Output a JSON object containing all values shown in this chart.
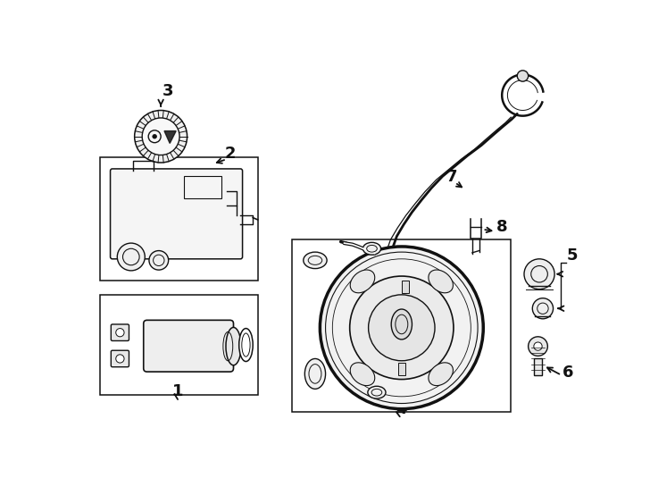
{
  "background": "#ffffff",
  "line_color": "#111111",
  "lw": 1.0,
  "fig_w": 7.28,
  "fig_h": 5.35,
  "xlim": [
    0,
    728
  ],
  "ylim": [
    0,
    535
  ]
}
